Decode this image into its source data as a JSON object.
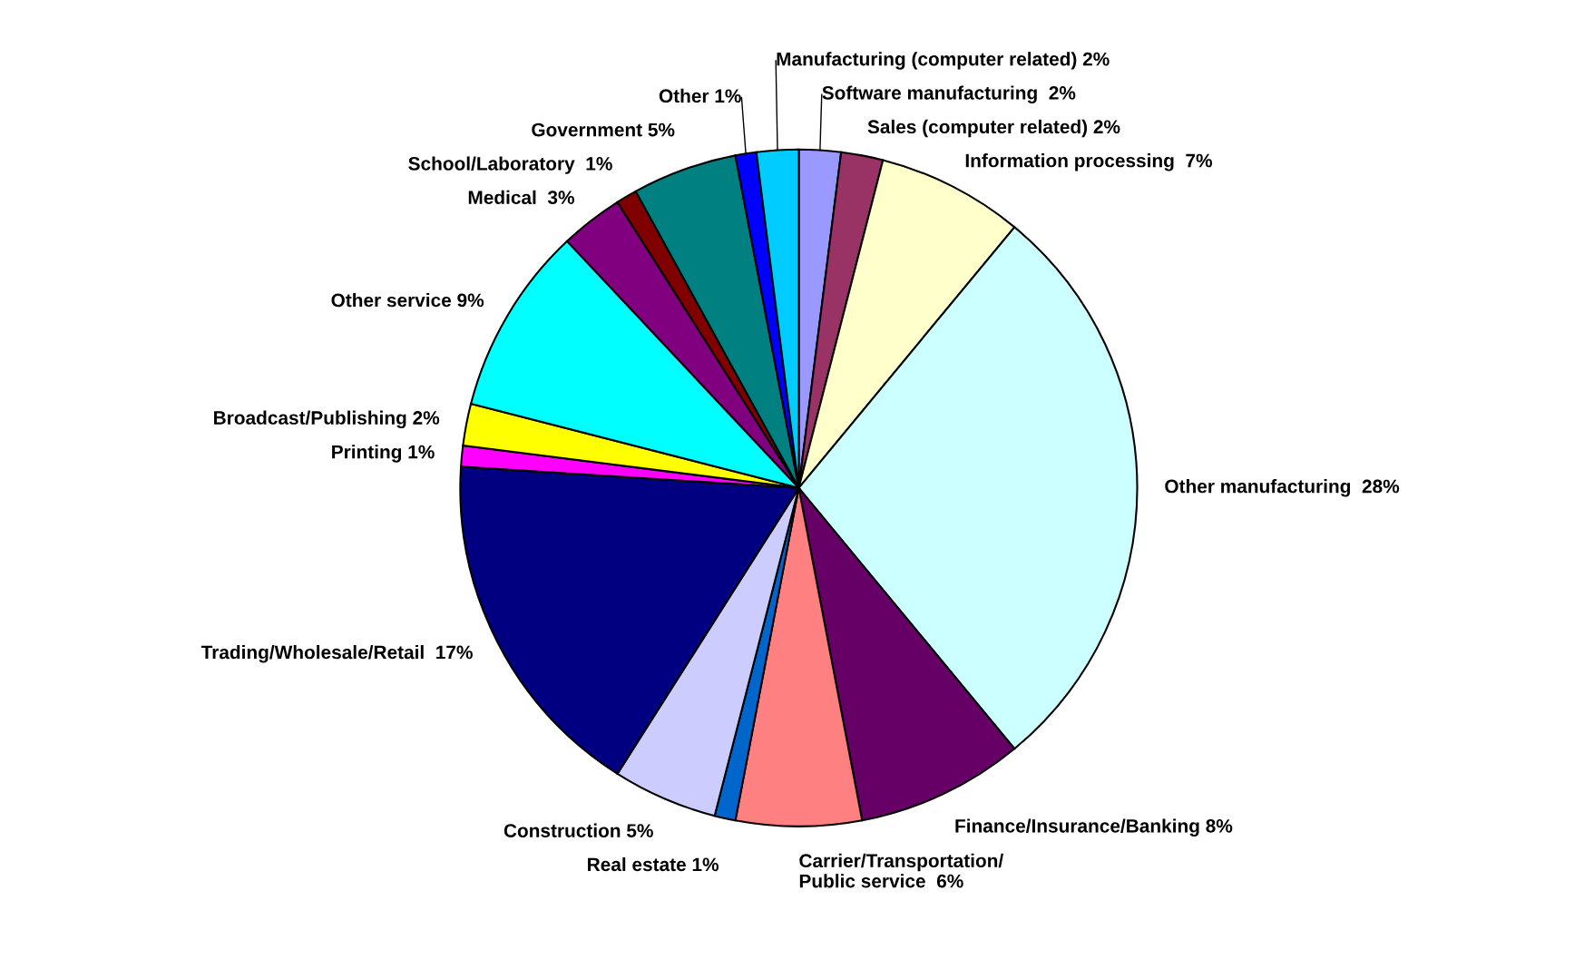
{
  "chart_data": {
    "type": "pie",
    "categories": [
      "Software manufacturing ",
      "Sales (computer related)",
      "Information processing ",
      "Other manufacturing ",
      "Finance/Insurance/Banking",
      "Carrier/Transportation/\nPublic service ",
      "Real estate",
      "Construction",
      "Trading/Wholesale/Retail ",
      "Printing",
      "Broadcast/Publishing",
      "Other service",
      "Medical ",
      "School/Laboratory ",
      "Government",
      "Other",
      "Manufacturing (computer related)"
    ],
    "values": [
      2,
      2,
      7,
      28,
      8,
      6,
      1,
      5,
      17,
      1,
      2,
      9,
      3,
      1,
      5,
      1,
      2
    ],
    "colors": [
      "#9999ff",
      "#993366",
      "#ffffcc",
      "#ccffff",
      "#660066",
      "#ff8080",
      "#0066cc",
      "#ccccff",
      "#000080",
      "#ff00ff",
      "#ffff00",
      "#00ffff",
      "#800080",
      "#800000",
      "#008080",
      "#0000ff",
      "#00ccff"
    ],
    "value_labels": [
      "2%",
      "2%",
      "7%",
      "28%",
      "8%",
      "6%",
      "1%",
      "5%",
      "17%",
      "1%",
      "2%",
      "9%",
      "3%",
      "1%",
      "5%",
      "1%",
      "2%"
    ],
    "legend": false
  }
}
